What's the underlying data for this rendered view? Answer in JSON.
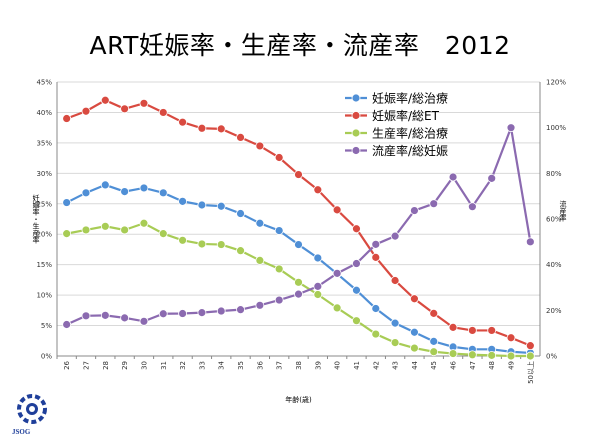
{
  "title": "ART妊娠率・生産率・流産率　2012",
  "logo_text": "JSOG",
  "chart_data": {
    "type": "line",
    "title": "ART妊娠率・生産率・流産率　2012",
    "xlabel": "年齢(歳)",
    "ylabel_left": "妊娠率・生産率",
    "ylabel_right": "流産率",
    "categories": [
      "26",
      "27",
      "28",
      "29",
      "30",
      "31",
      "32",
      "33",
      "34",
      "35",
      "36",
      "37",
      "38",
      "39",
      "40",
      "41",
      "42",
      "43",
      "44",
      "45",
      "46",
      "47",
      "48",
      "49",
      "50以上"
    ],
    "ylim_left": [
      0,
      45
    ],
    "ylim_right": [
      0,
      120
    ],
    "left_ticks": [
      "0%",
      "5%",
      "10%",
      "15%",
      "20%",
      "25%",
      "30%",
      "35%",
      "40%",
      "45%"
    ],
    "right_ticks": [
      "0%",
      "20%",
      "40%",
      "60%",
      "80%",
      "100%",
      "120%"
    ],
    "grid": true,
    "legend_position": "top-right",
    "series": [
      {
        "name": "妊娠率/総治療",
        "axis": "left",
        "color": "#4f8fd6",
        "values": [
          25.2,
          26.8,
          28.1,
          27.0,
          27.6,
          26.8,
          25.4,
          24.8,
          24.6,
          23.4,
          21.8,
          20.6,
          18.3,
          16.1,
          13.5,
          10.8,
          7.8,
          5.4,
          3.9,
          2.4,
          1.5,
          1.1,
          1.1,
          0.7,
          0.5
        ]
      },
      {
        "name": "妊娠率/総ET",
        "axis": "left",
        "color": "#d94a40",
        "values": [
          39.0,
          40.2,
          42.0,
          40.6,
          41.5,
          40.0,
          38.4,
          37.4,
          37.3,
          35.9,
          34.5,
          32.6,
          29.8,
          27.3,
          24.0,
          20.9,
          16.2,
          12.4,
          9.4,
          7.0,
          4.7,
          4.2,
          4.2,
          3.0,
          1.7
        ]
      },
      {
        "name": "生産率/総治療",
        "axis": "left",
        "color": "#a8cc55",
        "values": [
          20.1,
          20.7,
          21.3,
          20.7,
          21.8,
          20.1,
          19.0,
          18.4,
          18.3,
          17.3,
          15.7,
          14.3,
          12.1,
          10.1,
          7.9,
          5.8,
          3.6,
          2.2,
          1.3,
          0.7,
          0.4,
          0.2,
          0.1,
          0.0,
          0.0
        ]
      },
      {
        "name": "流産率/総妊娠",
        "axis": "right",
        "color": "#8b6ab0",
        "values": [
          13.8,
          17.6,
          17.8,
          16.7,
          15.2,
          18.5,
          18.6,
          19.0,
          19.7,
          20.3,
          22.2,
          24.5,
          27.1,
          30.5,
          36.2,
          40.5,
          48.9,
          52.5,
          63.7,
          66.7,
          78.4,
          65.4,
          77.8,
          100.0,
          50.0
        ]
      }
    ]
  }
}
